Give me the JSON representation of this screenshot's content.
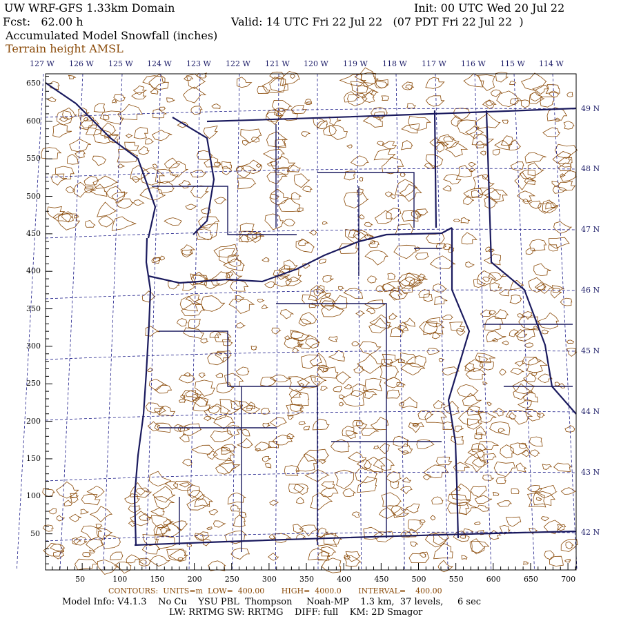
{
  "header": {
    "title": "UW WRF-GFS 1.33km Domain",
    "init": "Init: 00 UTC Wed 20 Jul 22",
    "fcst": "Fcst:   62.00 h",
    "valid": "Valid: 14 UTC Fri 22 Jul 22   (07 PDT Fri 22 Jul 22  )",
    "field": "Accumulated Model Snowfall (inches)",
    "overlay": "Terrain height AMSL"
  },
  "longitude_labels": [
    "127 W",
    "126 W",
    "125 W",
    "124 W",
    "123 W",
    "122 W",
    "121 W",
    "120 W",
    "119 W",
    "118 W",
    "117 W",
    "116 W",
    "115 W",
    "114 W"
  ],
  "latitude_labels": [
    "49 N",
    "48 N",
    "47 N",
    "46 N",
    "45 N",
    "44 N",
    "43 N",
    "42 N"
  ],
  "x_ticks": [
    "50",
    "100",
    "150",
    "200",
    "250",
    "300",
    "350",
    "400",
    "450",
    "500",
    "550",
    "600",
    "650",
    "700"
  ],
  "y_ticks": [
    "650",
    "600",
    "550",
    "500",
    "450",
    "400",
    "350",
    "300",
    "250",
    "200",
    "150",
    "100",
    "50"
  ],
  "footer": {
    "contours": "CONTOURS:  UNITS=m  LOW=  400.00       HIGH=  4000.0       INTERVAL=    400.00",
    "model_info": "Model Info: V4.1.3    No Cu    YSU PBL  Thompson     Noah-MP    1.3 km,  37 levels,     6 sec",
    "physics": "LW: RRTMG SW: RRTMG    DIFF: full    KM: 2D Smagor"
  },
  "colors": {
    "border": "#1a1a5e",
    "terrain": "#8a4a08",
    "graticule": "#1a1a88"
  }
}
